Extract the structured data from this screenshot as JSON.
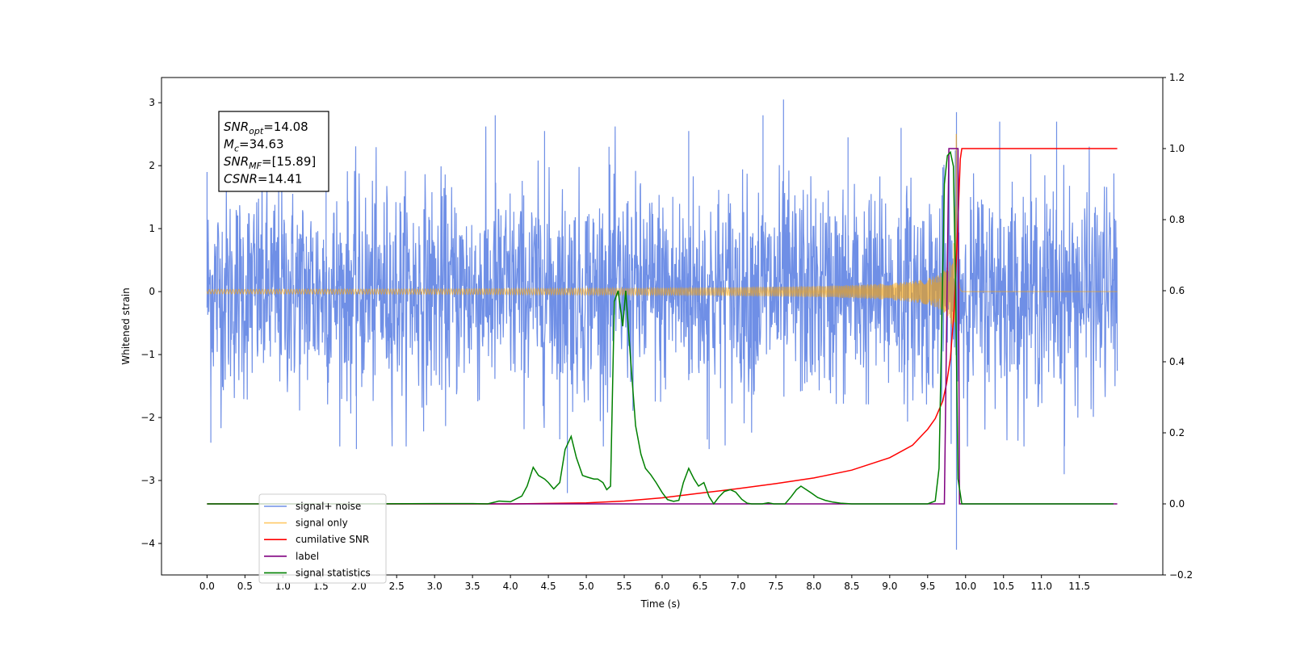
{
  "chart_data": {
    "type": "line",
    "title": "",
    "xlabel": "Time (s)",
    "ylabel": "Whitened strain",
    "y2label": "",
    "xlim": [
      -0.6,
      12.6
    ],
    "ylim": [
      -4.5,
      3.4
    ],
    "y2lim": [
      -0.2,
      1.2
    ],
    "x_ticks": [
      "0.0",
      "0.5",
      "1.0",
      "1.5",
      "2.0",
      "2.5",
      "3.0",
      "3.5",
      "4.0",
      "4.5",
      "5.0",
      "5.5",
      "6.0",
      "6.5",
      "7.0",
      "7.5",
      "8.0",
      "8.5",
      "9.0",
      "9.5",
      "10.0",
      "10.5",
      "11.0",
      "11.5"
    ],
    "y_ticks": [
      "3",
      "2",
      "1",
      "0",
      "−1",
      "−2",
      "−3",
      "−4"
    ],
    "y2_ticks": [
      "1.2",
      "1.0",
      "0.8",
      "0.6",
      "0.4",
      "0.2",
      "0.0",
      "−0.2"
    ],
    "legend_position": "lower-left",
    "annotation_lines": [
      {
        "base": "SNR",
        "sub": "opt",
        "rest": "=14.08"
      },
      {
        "base": "M",
        "sub": "c",
        "rest": "=34.63"
      },
      {
        "base": "SNR",
        "sub": "MF",
        "rest": "=[15.89]"
      },
      {
        "base": "CSNR",
        "sub": "",
        "rest": "=14.41"
      }
    ],
    "series": [
      {
        "name": "signal+ noise",
        "axis": "left",
        "color": "#6f8fe6",
        "envelope": {
          "x_range": [
            0.0,
            12.0
          ],
          "typical_amplitude": 1.35,
          "max": 3.05,
          "min": -4.1
        },
        "peaks": [
          [
            0.0,
            1.9
          ],
          [
            0.05,
            -2.4
          ],
          [
            1.57,
            2.5
          ],
          [
            1.97,
            -2.5
          ],
          [
            3.8,
            2.8
          ],
          [
            4.45,
            2.55
          ],
          [
            4.75,
            -3.2
          ],
          [
            5.3,
            2.3
          ],
          [
            6.35,
            2.55
          ],
          [
            6.62,
            -2.5
          ],
          [
            7.33,
            2.8
          ],
          [
            7.6,
            3.05
          ],
          [
            8.45,
            2.45
          ],
          [
            9.15,
            2.6
          ],
          [
            9.88,
            2.85
          ],
          [
            9.88,
            -4.1
          ],
          [
            10.45,
            2.7
          ],
          [
            11.2,
            2.7
          ],
          [
            11.3,
            -2.9
          ]
        ]
      },
      {
        "name": "signal only",
        "axis": "left",
        "color": "#ffa500",
        "chirp": {
          "start": 5.5,
          "merger": 9.88,
          "peak_amplitude": 2.6,
          "end": 9.95
        }
      },
      {
        "name": "cumilative SNR",
        "axis": "right",
        "color": "#ff0000",
        "x": [
          0.0,
          3.0,
          4.0,
          5.0,
          5.5,
          6.0,
          6.5,
          7.0,
          7.5,
          8.0,
          8.5,
          9.0,
          9.3,
          9.5,
          9.6,
          9.7,
          9.75,
          9.8,
          9.85,
          9.9,
          9.93,
          9.95,
          12.0
        ],
        "y": [
          0.0,
          0.0,
          0.0,
          0.003,
          0.008,
          0.017,
          0.03,
          0.043,
          0.057,
          0.073,
          0.095,
          0.13,
          0.165,
          0.21,
          0.24,
          0.29,
          0.34,
          0.41,
          0.55,
          0.8,
          0.97,
          1.0,
          1.0
        ]
      },
      {
        "name": "label",
        "axis": "right",
        "color": "#800080",
        "x": [
          0.0,
          9.72,
          9.78,
          9.9,
          9.92,
          12.0
        ],
        "y": [
          0.0,
          0.0,
          1.0,
          1.0,
          0.0,
          0.0
        ]
      },
      {
        "name": "signal statistics",
        "axis": "right",
        "color": "#008000",
        "x": [
          0.0,
          1.0,
          2.0,
          3.0,
          3.5,
          3.7,
          3.85,
          4.0,
          4.15,
          4.22,
          4.3,
          4.37,
          4.45,
          4.5,
          4.57,
          4.65,
          4.72,
          4.8,
          4.87,
          4.95,
          5.02,
          5.1,
          5.15,
          5.22,
          5.27,
          5.32,
          5.37,
          5.42,
          5.48,
          5.52,
          5.58,
          5.65,
          5.72,
          5.78,
          5.85,
          5.92,
          6.0,
          6.07,
          6.15,
          6.22,
          6.28,
          6.35,
          6.42,
          6.48,
          6.55,
          6.62,
          6.68,
          6.75,
          6.82,
          6.9,
          6.97,
          7.05,
          7.12,
          7.18,
          7.25,
          7.32,
          7.4,
          7.47,
          7.55,
          7.62,
          7.7,
          7.77,
          7.83,
          7.9,
          7.97,
          8.05,
          8.15,
          8.25,
          8.35,
          8.5,
          9.0,
          9.5,
          9.6,
          9.65,
          9.72,
          9.76,
          9.8,
          9.84,
          9.87,
          9.9,
          9.95,
          10.5,
          11.5,
          11.95
        ],
        "y": [
          0.0,
          0.0,
          0.0,
          0.001,
          0.001,
          0.0,
          0.008,
          0.006,
          0.022,
          0.05,
          0.103,
          0.08,
          0.07,
          0.06,
          0.042,
          0.06,
          0.153,
          0.19,
          0.13,
          0.08,
          0.075,
          0.07,
          0.07,
          0.06,
          0.04,
          0.05,
          0.57,
          0.6,
          0.5,
          0.6,
          0.42,
          0.22,
          0.14,
          0.1,
          0.082,
          0.06,
          0.032,
          0.012,
          0.007,
          0.01,
          0.06,
          0.1,
          0.07,
          0.05,
          0.06,
          0.02,
          0.0,
          0.02,
          0.035,
          0.04,
          0.033,
          0.013,
          0.002,
          0.0,
          0.0,
          0.0,
          0.003,
          0.0,
          0.0,
          0.0,
          0.02,
          0.04,
          0.05,
          0.04,
          0.03,
          0.018,
          0.01,
          0.005,
          0.002,
          0.0,
          0.0,
          0.0,
          0.008,
          0.1,
          0.9,
          0.98,
          0.99,
          0.95,
          0.6,
          0.07,
          0.0,
          0.0,
          0.0,
          0.0
        ]
      }
    ],
    "colors": {
      "noise": "#6f8fe6",
      "signal": "#ffa500",
      "csnr": "#ff0000",
      "label": "#800080",
      "stat": "#008000"
    }
  }
}
